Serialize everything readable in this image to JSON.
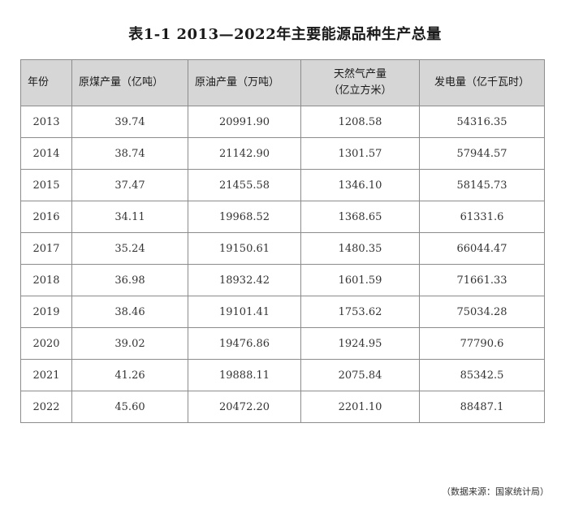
{
  "title": "表1-1  2013—2022年主要能源品种生产总量",
  "headers": [
    {
      "line1": "年份",
      "line2": ""
    },
    {
      "line1": "原煤产量（亿吨）",
      "line2": ""
    },
    {
      "line1": "原油产量（万吨）",
      "line2": ""
    },
    {
      "line1": "天然气产量",
      "line2": "（亿立方米）"
    },
    {
      "line1": "发电量（亿千瓦时）",
      "line2": ""
    }
  ],
  "rows": [
    [
      "2013",
      "39.74",
      "20991.90",
      "1208.58",
      "54316.35"
    ],
    [
      "2014",
      "38.74",
      "21142.90",
      "1301.57",
      "57944.57"
    ],
    [
      "2015",
      "37.47",
      "21455.58",
      "1346.10",
      "58145.73"
    ],
    [
      "2016",
      "34.11",
      "19968.52",
      "1368.65",
      "61331.6"
    ],
    [
      "2017",
      "35.24",
      "19150.61",
      "1480.35",
      "66044.47"
    ],
    [
      "2018",
      "36.98",
      "18932.42",
      "1601.59",
      "71661.33"
    ],
    [
      "2019",
      "38.46",
      "19101.41",
      "1753.62",
      "75034.28"
    ],
    [
      "2020",
      "39.02",
      "19476.86",
      "1924.95",
      "77790.6"
    ],
    [
      "2021",
      "41.26",
      "19888.11",
      "2075.84",
      "85342.5"
    ],
    [
      "2022",
      "45.60",
      "20472.20",
      "2201.10",
      "88487.1"
    ]
  ],
  "source": "（数据来源：国家统计局）"
}
